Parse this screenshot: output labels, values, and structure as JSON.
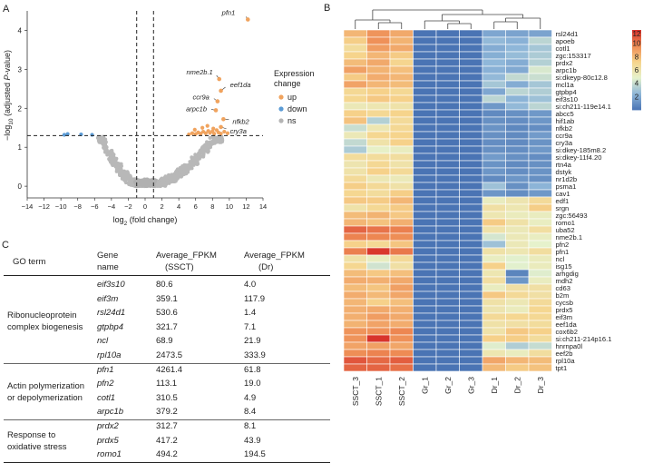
{
  "panel_labels": {
    "a": "A",
    "b": "B",
    "c": "C"
  },
  "chart_data": [
    {
      "type": "scatter",
      "title": "",
      "xlabel": "log2 (fold change)",
      "ylabel": "-log10 (adjusted P-value)",
      "xlabel_parts": {
        "pre": "log",
        "sub": "2",
        "post": " (fold change)"
      },
      "ylabel_parts": {
        "pre": "−log",
        "sub": "10",
        "post": " (adjusted ",
        "italic": "P",
        "post2": "-value)"
      },
      "xlim": [
        -14,
        14
      ],
      "ylim": [
        -0.3,
        4.5
      ],
      "xticks": [
        -14,
        -12,
        -10,
        -8,
        -6,
        -4,
        -2,
        0,
        2,
        4,
        6,
        8,
        10,
        12,
        14
      ],
      "yticks": [
        0,
        1,
        2,
        3,
        4
      ],
      "thresholds": {
        "x": [
          -1,
          1
        ],
        "y": 1.3
      },
      "legend": {
        "title_line1": "Expression",
        "title_line2": "change",
        "entries": [
          {
            "label": "up",
            "color": "#F0A35E"
          },
          {
            "label": "down",
            "color": "#5B9BD5"
          },
          {
            "label": "ns",
            "color": "#B4B4B4"
          }
        ],
        "placement": "right"
      },
      "labeled_genes": [
        {
          "gene": "pfn1",
          "x": 12.2,
          "y": 4.28
        },
        {
          "gene": "nme2b.1",
          "x": 8.8,
          "y": 2.75
        },
        {
          "gene": "eef1da",
          "x": 9.0,
          "y": 2.45
        },
        {
          "gene": "ccr9a",
          "x": 8.6,
          "y": 2.18
        },
        {
          "gene": "arpc1b",
          "x": 8.4,
          "y": 1.95
        },
        {
          "gene": "nfkb2",
          "x": 9.3,
          "y": 1.72
        },
        {
          "gene": "cry3a",
          "x": 9.0,
          "y": 1.52
        }
      ],
      "up_points": [
        {
          "x": 5.2,
          "y": 1.33
        },
        {
          "x": 5.6,
          "y": 1.36
        },
        {
          "x": 6.0,
          "y": 1.34
        },
        {
          "x": 6.3,
          "y": 1.38
        },
        {
          "x": 6.6,
          "y": 1.35
        },
        {
          "x": 6.9,
          "y": 1.4
        },
        {
          "x": 7.2,
          "y": 1.36
        },
        {
          "x": 7.5,
          "y": 1.42
        },
        {
          "x": 7.7,
          "y": 1.37
        },
        {
          "x": 8.0,
          "y": 1.41
        },
        {
          "x": 8.2,
          "y": 1.35
        },
        {
          "x": 8.5,
          "y": 1.44
        },
        {
          "x": 8.7,
          "y": 1.38
        },
        {
          "x": 9.0,
          "y": 1.35
        },
        {
          "x": 9.4,
          "y": 1.4
        },
        {
          "x": 9.8,
          "y": 1.36
        },
        {
          "x": 5.9,
          "y": 1.45
        },
        {
          "x": 6.8,
          "y": 1.5
        },
        {
          "x": 7.4,
          "y": 1.55
        },
        {
          "x": 8.1,
          "y": 1.48
        }
      ],
      "down_points": [
        {
          "x": -9.6,
          "y": 1.32
        },
        {
          "x": -9.2,
          "y": 1.34
        },
        {
          "x": -7.6,
          "y": 1.33
        },
        {
          "x": -6.3,
          "y": 1.32
        }
      ]
    },
    {
      "type": "heatmap",
      "colorbar": {
        "min": 0,
        "max": 12,
        "ticks": [
          2,
          4,
          6,
          8,
          10,
          12
        ],
        "stops": [
          "#4A74B4",
          "#8FB7D9",
          "#E6F2CC",
          "#F6D48C",
          "#EE8B54",
          "#D7302A"
        ]
      },
      "columns": [
        "SSCT_3",
        "SSCT_1",
        "SSCT_2",
        "Gr_1",
        "Gr_2",
        "Gr_3",
        "Dr_1",
        "Dr_2",
        "Dr_3"
      ],
      "rows": [
        {
          "gene": "rsl24d1",
          "values": [
            8.2,
            9.3,
            8.6,
            0,
            0,
            0,
            1.8,
            1.7,
            1.7
          ]
        },
        {
          "gene": "apoeb",
          "values": [
            7.4,
            9.4,
            8.3,
            0,
            0,
            0,
            2.5,
            2.2,
            3.6
          ]
        },
        {
          "gene": "cotl1",
          "values": [
            6.6,
            9.0,
            8.6,
            0,
            0,
            0,
            2.0,
            2.4,
            3.0
          ]
        },
        {
          "gene": "zgc:153317",
          "values": [
            7.2,
            8.2,
            7.5,
            0,
            0,
            0,
            2.1,
            2.6,
            3.2
          ]
        },
        {
          "gene": "prdx2",
          "values": [
            8.0,
            8.6,
            7.1,
            0,
            0,
            0,
            2.4,
            2.0,
            3.4
          ]
        },
        {
          "gene": "arpc1b",
          "values": [
            8.9,
            8.3,
            7.9,
            0,
            0,
            0,
            2.2,
            1.9,
            4.4
          ]
        },
        {
          "gene": "si:dkeyp-80c12.8",
          "values": [
            7.5,
            8.5,
            8.2,
            0,
            0,
            0,
            2.5,
            3.8,
            4.0
          ]
        },
        {
          "gene": "mcl1a",
          "values": [
            8.8,
            8.2,
            8.0,
            0,
            0,
            0,
            3.0,
            2.0,
            3.0
          ]
        },
        {
          "gene": "gtpbp4",
          "values": [
            6.9,
            7.3,
            6.9,
            0,
            0,
            0,
            1.8,
            3.6,
            3.3
          ]
        },
        {
          "gene": "eif3s10",
          "values": [
            7.0,
            7.6,
            7.3,
            0,
            0,
            0,
            3.6,
            2.3,
            2.8
          ]
        },
        {
          "gene": "si:ch211-119e14.1",
          "values": [
            5.6,
            5.8,
            6.1,
            0,
            0,
            0,
            1.3,
            2.5,
            3.6
          ]
        },
        {
          "gene": "abcc5",
          "values": [
            7.3,
            6.9,
            7.2,
            0,
            0,
            0,
            0.8,
            1.0,
            1.3
          ]
        },
        {
          "gene": "hif1ab",
          "values": [
            7.8,
            3.4,
            6.7,
            0,
            0,
            0,
            1.0,
            0.9,
            1.2
          ]
        },
        {
          "gene": "nfkb2",
          "values": [
            4.0,
            5.8,
            6.9,
            0,
            0,
            0,
            1.1,
            0.7,
            0.9
          ]
        },
        {
          "gene": "ccr9a",
          "values": [
            5.6,
            7.0,
            7.2,
            0,
            0,
            0,
            1.0,
            0.8,
            1.4
          ]
        },
        {
          "gene": "cry3a",
          "values": [
            3.8,
            6.1,
            7.3,
            0,
            0,
            0,
            0.9,
            0.8,
            1.1
          ]
        },
        {
          "gene": "si:dkey-185m8.2",
          "values": [
            3.2,
            5.0,
            5.3,
            0,
            0,
            0,
            1.0,
            0.9,
            1.3
          ]
        },
        {
          "gene": "si:dkey-11f4.20",
          "values": [
            6.6,
            6.6,
            6.5,
            0,
            0,
            0,
            1.4,
            1.0,
            0.9
          ]
        },
        {
          "gene": "rtn4a",
          "values": [
            5.9,
            6.9,
            6.1,
            0,
            0,
            0,
            1.1,
            0.8,
            1.0
          ]
        },
        {
          "gene": "dstyk",
          "values": [
            6.1,
            7.3,
            6.8,
            0,
            0,
            0,
            1.2,
            0.9,
            1.1
          ]
        },
        {
          "gene": "nr1d2b",
          "values": [
            6.7,
            5.7,
            5.5,
            0,
            0,
            0,
            0.8,
            1.2,
            1.0
          ]
        },
        {
          "gene": "psma1",
          "values": [
            7.4,
            6.8,
            6.2,
            0,
            0,
            0,
            2.8,
            1.0,
            2.3
          ]
        },
        {
          "gene": "cav1",
          "values": [
            7.0,
            6.6,
            7.4,
            0,
            0,
            0,
            1.2,
            0.9,
            1.3
          ]
        },
        {
          "gene": "edf1",
          "values": [
            7.6,
            7.5,
            8.2,
            0,
            0,
            0,
            5.3,
            5.9,
            6.7
          ]
        },
        {
          "gene": "srgn",
          "values": [
            6.1,
            6.9,
            7.5,
            0,
            0,
            0,
            6.3,
            5.8,
            7.4
          ]
        },
        {
          "gene": "zgc:56493",
          "values": [
            8.0,
            8.3,
            7.6,
            0,
            0,
            0,
            5.8,
            5.4,
            5.3
          ]
        },
        {
          "gene": "romo1",
          "values": [
            8.2,
            7.8,
            8.4,
            0,
            0,
            0,
            7.5,
            6.2,
            5.2
          ]
        },
        {
          "gene": "uba52",
          "values": [
            10.6,
            10.2,
            9.9,
            0,
            0,
            0,
            6.1,
            5.6,
            6.4
          ]
        },
        {
          "gene": "nme2b.1",
          "values": [
            9.8,
            9.7,
            9.5,
            0,
            0,
            0,
            4.3,
            5.6,
            5.2
          ]
        },
        {
          "gene": "pfn2",
          "values": [
            7.3,
            6.9,
            7.7,
            0,
            0,
            0,
            2.8,
            5.6,
            4.8
          ]
        },
        {
          "gene": "pfn1",
          "values": [
            9.9,
            11.8,
            10.1,
            0,
            0,
            0,
            6.2,
            5.8,
            6.5
          ]
        },
        {
          "gene": "ncl",
          "values": [
            6.2,
            5.3,
            6.8,
            0,
            0,
            0,
            5.2,
            4.7,
            5.4
          ]
        },
        {
          "gene": "isg15",
          "values": [
            7.0,
            4.2,
            6.3,
            0,
            0,
            0,
            7.3,
            4.7,
            5.4
          ]
        },
        {
          "gene": "arhgdig",
          "values": [
            8.0,
            7.6,
            7.9,
            0,
            0,
            0,
            5.8,
            0.6,
            4.6
          ]
        },
        {
          "gene": "mdh2",
          "values": [
            8.5,
            8.4,
            8.6,
            0,
            0,
            0,
            6.4,
            1.2,
            5.3
          ]
        },
        {
          "gene": "cd63",
          "values": [
            8.0,
            7.7,
            8.9,
            0,
            0,
            0,
            5.3,
            6.3,
            6.3
          ]
        },
        {
          "gene": "b2m",
          "values": [
            8.5,
            8.1,
            8.7,
            0,
            0,
            0,
            7.6,
            6.8,
            6.3
          ]
        },
        {
          "gene": "cycsb",
          "values": [
            8.2,
            7.3,
            7.9,
            0,
            0,
            0,
            6.2,
            5.7,
            6.7
          ]
        },
        {
          "gene": "prdx5",
          "values": [
            8.4,
            8.6,
            8.4,
            0,
            0,
            0,
            5.9,
            5.4,
            7.0
          ]
        },
        {
          "gene": "eif3m",
          "values": [
            8.4,
            9.0,
            8.6,
            0,
            0,
            0,
            6.8,
            7.0,
            6.9
          ]
        },
        {
          "gene": "eef1da",
          "values": [
            8.3,
            8.8,
            8.5,
            0,
            0,
            0,
            6.2,
            6.3,
            6.6
          ]
        },
        {
          "gene": "cox6b2",
          "values": [
            9.3,
            9.4,
            9.7,
            0,
            0,
            0,
            6.1,
            7.6,
            7.3
          ]
        },
        {
          "gene": "si:ch211-214p16.1",
          "values": [
            9.3,
            11.9,
            9.4,
            0,
            0,
            0,
            7.3,
            7.4,
            6.6
          ]
        },
        {
          "gene": "hnrnpa0l",
          "values": [
            8.8,
            8.9,
            8.7,
            0,
            0,
            0,
            4.6,
            3.3,
            3.9
          ]
        },
        {
          "gene": "eef2b",
          "values": [
            9.5,
            9.8,
            9.6,
            0,
            0,
            0,
            5.8,
            5.3,
            6.5
          ]
        },
        {
          "gene": "rpl10a",
          "values": [
            11.0,
            10.5,
            10.8,
            0,
            0,
            0,
            8.7,
            8.2,
            8.0
          ]
        },
        {
          "gene": "tpt1",
          "values": [
            10.6,
            10.6,
            10.3,
            0,
            0,
            0,
            8.1,
            7.5,
            7.8
          ]
        }
      ]
    },
    {
      "type": "table",
      "headers": {
        "go_term": "GO term",
        "gene_line1": "Gene",
        "gene_line2": "name",
        "fpkm_ssct_line1": "Average_FPKM",
        "fpkm_ssct_line2": "(SSCT)",
        "fpkm_dr_line1": "Average_FPKM",
        "fpkm_dr_line2": "(Dr)"
      },
      "groups": [
        {
          "term_lines": [
            "Ribonucleoprotein",
            "complex biogenesis"
          ],
          "rows": [
            {
              "gene": "eif3s10",
              "ssct": "80.6",
              "dr": "4.0"
            },
            {
              "gene": "eif3m",
              "ssct": "359.1",
              "dr": "117.9"
            },
            {
              "gene": "rsl24d1",
              "ssct": "530.6",
              "dr": "1.4"
            },
            {
              "gene": "gtpbp4",
              "ssct": "321.7",
              "dr": "7.1"
            },
            {
              "gene": "ncl",
              "ssct": "68.9",
              "dr": "21.9"
            },
            {
              "gene": "rpl10a",
              "ssct": "2473.5",
              "dr": "333.9"
            }
          ]
        },
        {
          "term_lines": [
            "Actin polymerization",
            "or depolymerization"
          ],
          "rows": [
            {
              "gene": "pfn1",
              "ssct": "4261.4",
              "dr": "61.8"
            },
            {
              "gene": "pfn2",
              "ssct": "113.1",
              "dr": "19.0"
            },
            {
              "gene": "cotl1",
              "ssct": "310.5",
              "dr": "4.9"
            },
            {
              "gene": "arpc1b",
              "ssct": "379.2",
              "dr": "8.4"
            }
          ]
        },
        {
          "term_lines": [
            "Response to",
            "oxidative stress"
          ],
          "rows": [
            {
              "gene": "prdx2",
              "ssct": "312.7",
              "dr": "8.1"
            },
            {
              "gene": "prdx5",
              "ssct": "417.2",
              "dr": "43.9"
            },
            {
              "gene": "romo1",
              "ssct": "494.2",
              "dr": "194.5"
            }
          ]
        }
      ]
    }
  ]
}
